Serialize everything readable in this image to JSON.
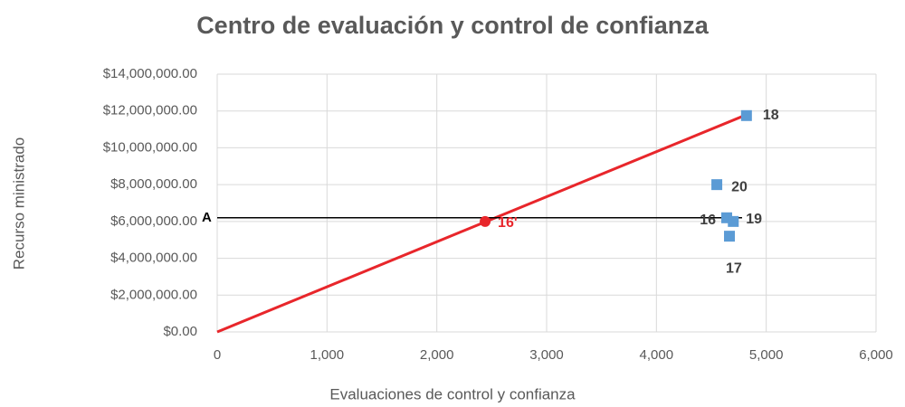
{
  "chart_data": {
    "type": "scatter",
    "title": "Centro de evaluación y control de confianza",
    "x_label": "Evaluaciones de control y confianza",
    "y_label": "Recurso ministrado",
    "xlim": [
      0,
      6000
    ],
    "xticks": [
      0,
      {
        "value": 1000,
        "label": "1,000"
      },
      {
        "value": 2000,
        "label": "2,000"
      },
      {
        "value": 3000,
        "label": "3,000"
      },
      {
        "value": 4000,
        "label": "4,000"
      },
      {
        "value": 5000,
        "label": "5,000"
      },
      {
        "value": 6000,
        "label": "6,000"
      }
    ],
    "ylim": [
      0,
      14000000
    ],
    "yticks": [
      {
        "value": 0,
        "label": "$0.00"
      },
      {
        "value": 2000000,
        "label": "$2,000,000.00"
      },
      {
        "value": 4000000,
        "label": "$4,000,000.00"
      },
      {
        "value": 6000000,
        "label": "$6,000,000.00"
      },
      {
        "value": 8000000,
        "label": "$8,000,000.00"
      },
      {
        "value": 10000000,
        "label": "$10,000,000.00"
      },
      {
        "value": 12000000,
        "label": "$12,000,000.00"
      },
      {
        "value": 14000000,
        "label": "$14,000,000.00"
      }
    ],
    "grid": true,
    "series": [
      {
        "color": "#5b9bd5",
        "marker": "square",
        "x": [
          4820,
          4550,
          4640,
          4700,
          4665
        ],
        "values": [
          11750000,
          8000000,
          6200000,
          6000000,
          5200000
        ],
        "labels": [
          "18",
          "20",
          "16",
          "19",
          "17"
        ],
        "label_color": "#404040"
      },
      {
        "color": "#e8262b",
        "marker": "circle",
        "x": [
          2440
        ],
        "values": [
          6000000
        ],
        "labels": [
          "16'"
        ],
        "label_color": "#e8262b"
      }
    ],
    "lines": [
      {
        "color": "#e8262b",
        "x": [
          0,
          4800
        ],
        "values": [
          0,
          11750000
        ]
      },
      {
        "color": "#000000",
        "x": [
          0,
          4780
        ],
        "values": [
          6200000,
          6200000
        ],
        "label": "A"
      }
    ]
  }
}
